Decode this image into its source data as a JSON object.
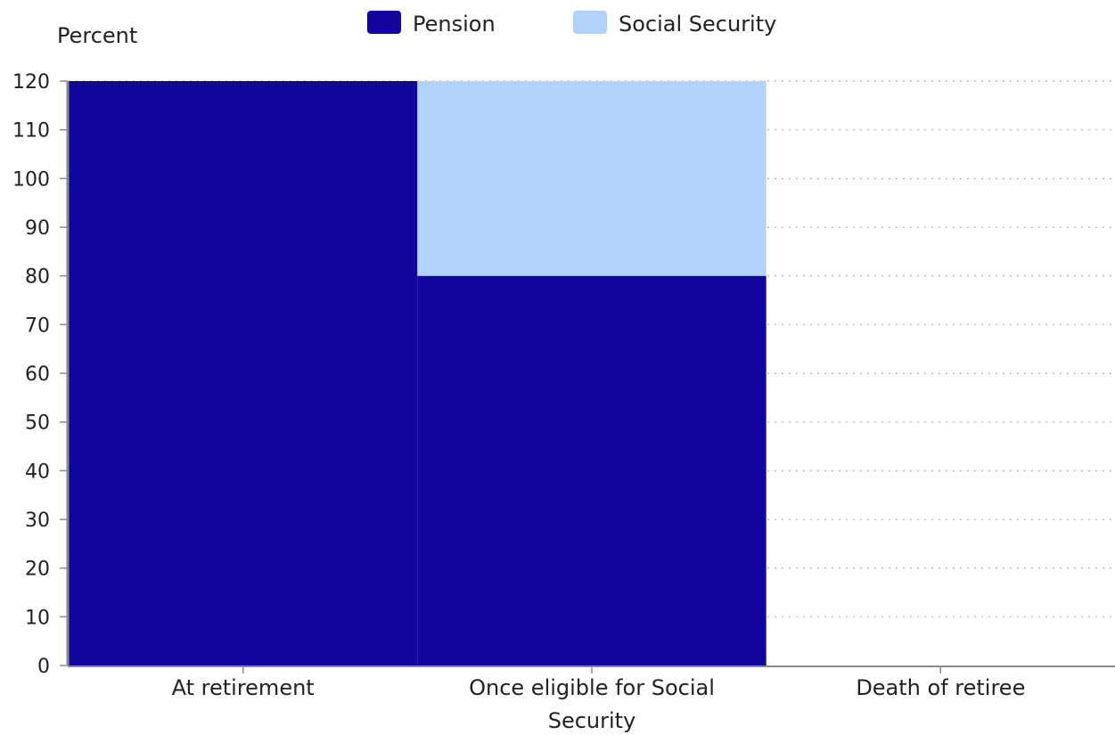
{
  "chart_data": {
    "type": "bar",
    "stacked": true,
    "ylabel": "Percent",
    "xlabel": "",
    "ylim": [
      0,
      120
    ],
    "yticks": [
      0,
      10,
      20,
      30,
      40,
      50,
      60,
      70,
      80,
      90,
      100,
      110,
      120
    ],
    "categories": [
      "At retirement",
      "Once eligible for Social Security",
      "Death of retiree"
    ],
    "category_lines": [
      [
        "At retirement"
      ],
      [
        "Once eligible for Social",
        "Security"
      ],
      [
        "Death of retiree"
      ]
    ],
    "series": [
      {
        "name": "Pension",
        "values": [
          120,
          80,
          0
        ],
        "color": "#10069f"
      },
      {
        "name": "Social Security",
        "values": [
          0,
          40,
          0
        ],
        "color": "#b0d2fb"
      }
    ],
    "grid": true,
    "legend_position": "top"
  }
}
